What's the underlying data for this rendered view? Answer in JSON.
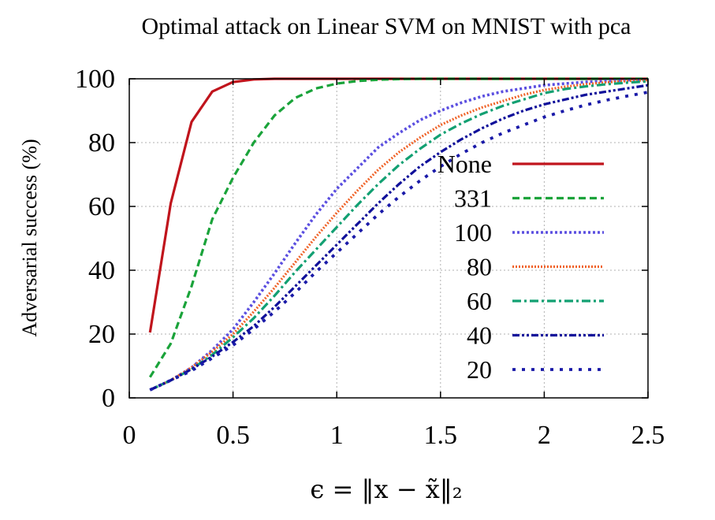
{
  "chart_data": {
    "type": "line",
    "title": "Optimal attack on Linear SVM on MNIST with pca",
    "xlabel": "ϵ = ‖x − x̃‖₂",
    "ylabel": "Adversarial success (%)",
    "xlim": [
      0,
      2.5
    ],
    "ylim": [
      0,
      100
    ],
    "xticks": [
      0,
      0.5,
      1,
      1.5,
      2,
      2.5
    ],
    "xtick_labels": [
      "0",
      "0.5",
      "1",
      "1.5",
      "2",
      "2.5"
    ],
    "yticks": [
      0,
      20,
      40,
      60,
      80,
      100
    ],
    "ytick_labels": [
      "0",
      "20",
      "40",
      "60",
      "80",
      "100"
    ],
    "grid": true,
    "legend_position": "right",
    "x": [
      0.1,
      0.2,
      0.3,
      0.4,
      0.5,
      0.6,
      0.7,
      0.8,
      0.9,
      1.0,
      1.1,
      1.2,
      1.3,
      1.4,
      1.5,
      1.6,
      1.7,
      1.8,
      1.9,
      2.0,
      2.1,
      2.2,
      2.3,
      2.4,
      2.5
    ],
    "series": [
      {
        "name": "None",
        "color": "#c0141c",
        "dash": "solid",
        "values": [
          20.5,
          61,
          86.5,
          96,
          99,
          99.8,
          100,
          100,
          100,
          100,
          100,
          100,
          100,
          100,
          100,
          100,
          100,
          100,
          100,
          100,
          100,
          100,
          100,
          100,
          100
        ]
      },
      {
        "name": "331",
        "color": "#1aa33a",
        "dash": "dashed",
        "values": [
          6.5,
          17,
          35,
          56,
          69,
          80,
          88.5,
          94,
          97,
          98.5,
          99.3,
          99.7,
          99.9,
          100,
          100,
          100,
          100,
          100,
          100,
          100,
          100,
          100,
          100,
          100,
          100
        ]
      },
      {
        "name": "100",
        "color": "#5b4fe0",
        "dash": "dotted",
        "values": [
          2.5,
          5.5,
          9.5,
          15,
          21.5,
          30,
          39,
          48.5,
          57.5,
          65.5,
          72,
          78.5,
          83,
          87,
          90,
          92.5,
          94.5,
          96,
          97,
          98,
          98.5,
          99,
          99.3,
          99.6,
          99.8
        ]
      },
      {
        "name": "80",
        "color": "#f0642a",
        "dash": "dotted-fine",
        "values": [
          2.5,
          5.5,
          9.5,
          14.5,
          20,
          27,
          34.5,
          42.5,
          50.5,
          58,
          65,
          71.5,
          77,
          81.5,
          85.5,
          88.5,
          91,
          93,
          95,
          96.5,
          97.5,
          98.3,
          98.9,
          99.3,
          99.6
        ]
      },
      {
        "name": "60",
        "color": "#12a072",
        "dash": "dash-dot",
        "values": [
          2.5,
          5.5,
          9,
          13.5,
          19,
          25,
          32,
          39.5,
          46.5,
          53.5,
          60.5,
          67,
          73,
          78,
          82.5,
          86,
          89,
          91.5,
          93.5,
          95.5,
          96.8,
          97.6,
          98.3,
          98.8,
          99.2
        ]
      },
      {
        "name": "40",
        "color": "#10109a",
        "dash": "dash-dot-dot",
        "values": [
          2.5,
          5.5,
          9,
          13,
          17.5,
          22.5,
          28.5,
          35,
          41.5,
          48,
          54.5,
          61,
          67,
          72.5,
          77,
          81,
          84.5,
          87.5,
          90,
          92,
          93.5,
          95,
          96,
          97,
          98
        ]
      },
      {
        "name": "20",
        "color": "#1a1aa8",
        "dash": "sparse-dot",
        "values": [
          2.5,
          5.5,
          8.5,
          12.5,
          16.5,
          21.5,
          27,
          33,
          39.5,
          45.5,
          51.5,
          57.5,
          63,
          68,
          72.5,
          76.5,
          80,
          83,
          85.5,
          88,
          90,
          91.8,
          93.3,
          94.6,
          95.8
        ]
      }
    ]
  }
}
